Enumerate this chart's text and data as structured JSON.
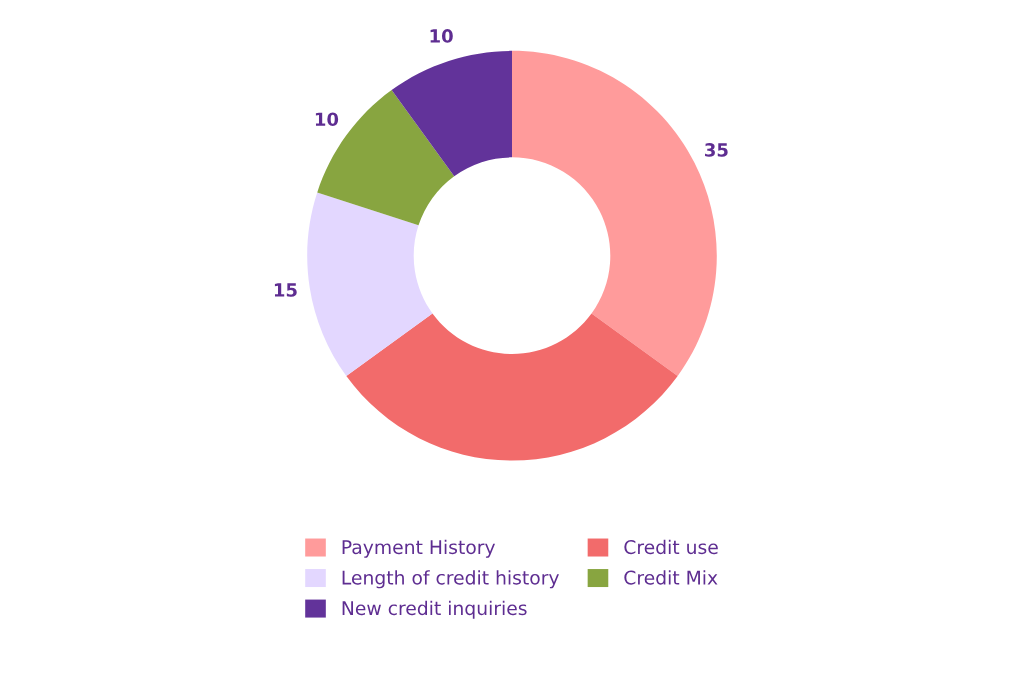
{
  "chart_data": {
    "type": "donut",
    "categories": [
      "Payment History",
      "Credit use",
      "Length of credit history",
      "Credit Mix",
      "New credit inquiries"
    ],
    "values": [
      35,
      30,
      15,
      10,
      10
    ],
    "value_labels": [
      "35",
      null,
      "15",
      "10",
      "10"
    ],
    "colors": [
      "#ff9b9b",
      "#f26b6b",
      "#e3d7ff",
      "#88a540",
      "#62339a"
    ],
    "legend": "bottom"
  }
}
